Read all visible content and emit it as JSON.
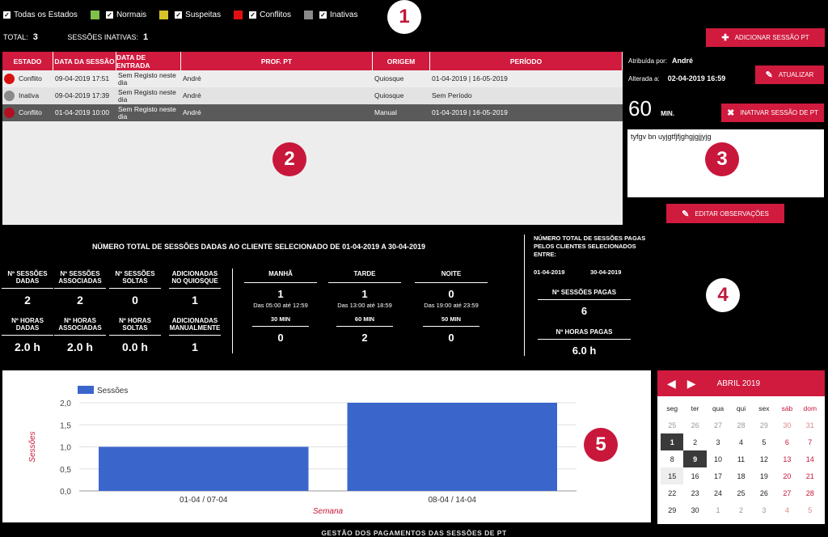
{
  "filters": [
    {
      "label": "Todas os Estados",
      "color": ""
    },
    {
      "label": "Normais",
      "color": "#7ec04a"
    },
    {
      "label": "Suspeitas",
      "color": "#d6c32a"
    },
    {
      "label": "Conflitos",
      "color": "#e01010"
    },
    {
      "label": "Inativas",
      "color": "#8a8a8a"
    }
  ],
  "check_glyph": "✓",
  "badges": [
    "1",
    "2",
    "3",
    "4",
    "5"
  ],
  "totals": {
    "total_label": "TOTAL:",
    "total_value": "3",
    "inactive_label": "SESSÕES INATIVAS:",
    "inactive_value": "1"
  },
  "buttons": {
    "add": "Adicionar sessão PT",
    "update": "Atualizar",
    "deactivate": "Inativar sessão de PT",
    "edit_obs": "Editar observações"
  },
  "table": {
    "headers": [
      "ESTADO",
      "DATA DA SESSÃO",
      "DATA DE ENTRADA",
      "PROF. PT",
      "ORIGEM",
      "PERÍODO"
    ],
    "rows": [
      {
        "status": "Conflito",
        "status_color": "#d8100f",
        "session_date": "09-04-2019 17:51",
        "entry_date": "Sem Registo neste dia",
        "prof": "André",
        "origin": "Quiosque",
        "period": "01-04-2019 | 16-05-2019"
      },
      {
        "status": "Inativa",
        "status_color": "#8a8a8a",
        "session_date": "09-04-2019 17:39",
        "entry_date": "Sem Registo neste dia",
        "prof": "André",
        "origin": "Quiosque",
        "period": "Sem Período"
      },
      {
        "status": "Conflito",
        "status_color": "#b01020",
        "session_date": "01-04-2019 10:00",
        "entry_date": "Sem Registo neste dia",
        "prof": "André",
        "origin": "Manual",
        "period": "01-04-2019 | 16-05-2019"
      }
    ]
  },
  "detail": {
    "assigned_label": "Atribuída por:",
    "assigned_value": "André",
    "changed_label": "Alterada a:",
    "changed_value": "02-04-2019 16:59",
    "duration_value": "60",
    "duration_unit": "MIN.",
    "observations": "tyfgv bn uyjgtfjfjghgjgjjyjg"
  },
  "stats": {
    "title": "NÚMERO TOTAL DE SESSÕES DADAS AO CLIENTE SELECIONADO DE 01-04-2019 A 30-04-2019",
    "cells": [
      {
        "label": "Nº SESSÕES DADAS",
        "value": "2"
      },
      {
        "label": "Nº SESSÕES ASSOCIADAS",
        "value": "2"
      },
      {
        "label": "Nº SESSÕES SOLTAS",
        "value": "0"
      },
      {
        "label": "ADICIONADAS NO QUIOSQUE",
        "value": "1"
      },
      {
        "label": "Nº HORAS DADAS",
        "value": "2.0 h"
      },
      {
        "label": "Nº HORAS ASSOCIADAS",
        "value": "2.0 h"
      },
      {
        "label": "Nº HORAS SOLTAS",
        "value": "0.0 h"
      },
      {
        "label": "ADICIONADAS MANUALMENTE",
        "value": "1"
      }
    ],
    "periods": [
      {
        "label": "MANHÃ",
        "value": "1",
        "range": "Das 05:00 até 12:59",
        "mins_label": "30 MIN",
        "mins_value": "0"
      },
      {
        "label": "TARDE",
        "value": "1",
        "range": "Das 13:00 até 18:59",
        "mins_label": "60 MIN",
        "mins_value": "2"
      },
      {
        "label": "NOITE",
        "value": "0",
        "range": "Das 19:00 até 23:59",
        "mins_label": "50 MIN",
        "mins_value": "0"
      }
    ],
    "paid": {
      "title": "NÚMERO TOTAL DE SESSÕES PAGAS PELOS CLIENTES SELECIONADOS ENTRE:",
      "from": "01-04-2019",
      "to": "30-04-2019",
      "sessions_label": "Nº SESSÕES PAGAS",
      "sessions_value": "6",
      "hours_label": "Nº HORAS PAGAS",
      "hours_value": "6.0 h"
    }
  },
  "chart_data": {
    "type": "bar",
    "categories": [
      "01-04 / 07-04",
      "08-04 / 14-04"
    ],
    "series": [
      {
        "name": "Sessões",
        "values": [
          1.0,
          2.0
        ],
        "color": "#3a66cc"
      }
    ],
    "xlabel": "Semana",
    "ylabel": "Sessões",
    "ylim": [
      0,
      2
    ],
    "yticks": [
      "0,0",
      "0,5",
      "1,0",
      "1,5",
      "2,0"
    ],
    "grid": true,
    "legend": "top-left"
  },
  "calendar": {
    "title": "ABRIL 2019",
    "weekdays": [
      "seg",
      "ter",
      "qua",
      "qui",
      "sex",
      "sáb",
      "dom"
    ],
    "days": [
      [
        "25",
        "26",
        "27",
        "28",
        "29",
        "30",
        "31"
      ],
      [
        "1",
        "2",
        "3",
        "4",
        "5",
        "6",
        "7"
      ],
      [
        "8",
        "9",
        "10",
        "11",
        "12",
        "13",
        "14"
      ],
      [
        "15",
        "16",
        "17",
        "18",
        "19",
        "20",
        "21"
      ],
      [
        "22",
        "23",
        "24",
        "25",
        "26",
        "27",
        "28"
      ],
      [
        "29",
        "30",
        "1",
        "2",
        "3",
        "4",
        "5"
      ]
    ],
    "marked": [
      "1",
      "9"
    ]
  },
  "footer": "GESTÃO DOS PAGAMENTOS DAS SESSÕES DE PT"
}
